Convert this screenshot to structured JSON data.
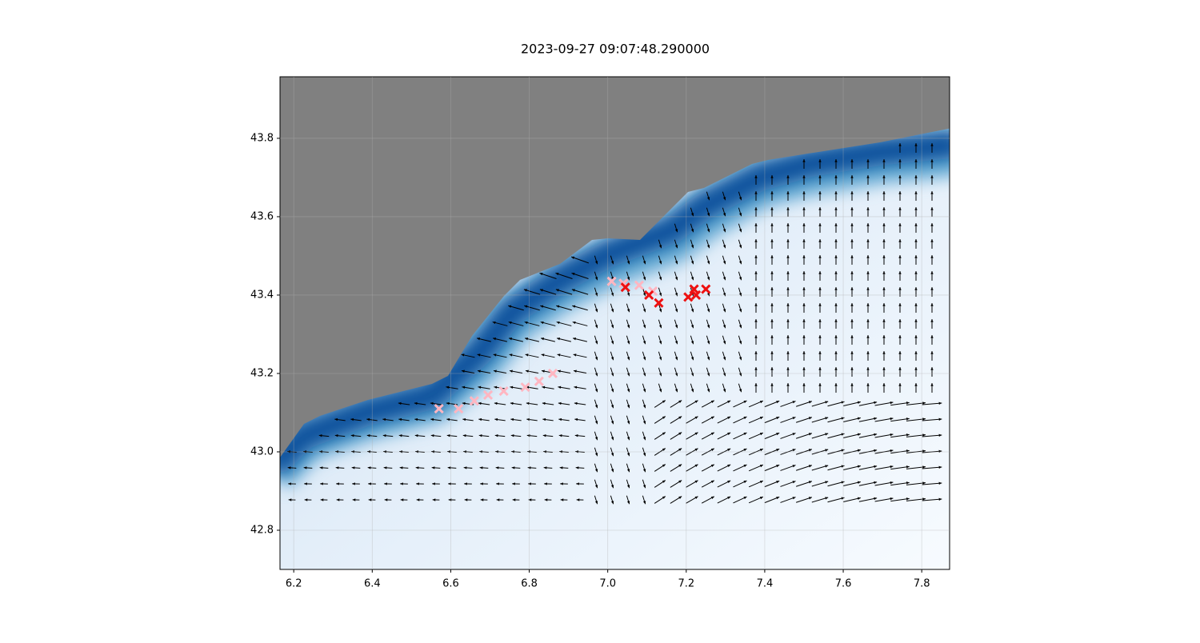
{
  "chart_data": {
    "type": "scatter",
    "title": "2023-09-27 09:07:48.290000",
    "xlim": [
      6.165,
      7.871
    ],
    "ylim": [
      42.7,
      43.957
    ],
    "xticks": [
      6.2,
      6.4,
      6.6,
      6.8,
      {
        "value": 7,
        "label": "7.0"
      },
      7.2,
      7.4,
      7.6,
      7.8
    ],
    "yticks": [
      42.8,
      {
        "value": 43,
        "label": "43.0"
      },
      43.2,
      43.4,
      43.6,
      43.8
    ],
    "grid": true,
    "series": [
      {
        "color": "#ffb6c1",
        "marker": "x",
        "x": [
          6.57,
          6.62,
          6.66,
          6.695,
          6.735,
          6.79,
          6.825,
          6.86,
          7.01,
          7.04,
          7.08,
          7.115
        ],
        "values": [
          43.11,
          43.11,
          43.13,
          43.145,
          43.155,
          43.165,
          43.18,
          43.2,
          43.435,
          43.43,
          43.425,
          43.41
        ]
      },
      {
        "color": "#ee1111",
        "marker": "x",
        "x": [
          7.045,
          7.105,
          7.13,
          7.205,
          7.22,
          7.225,
          7.25
        ],
        "values": [
          43.42,
          43.4,
          43.38,
          43.395,
          43.415,
          43.4,
          43.415
        ]
      }
    ]
  }
}
